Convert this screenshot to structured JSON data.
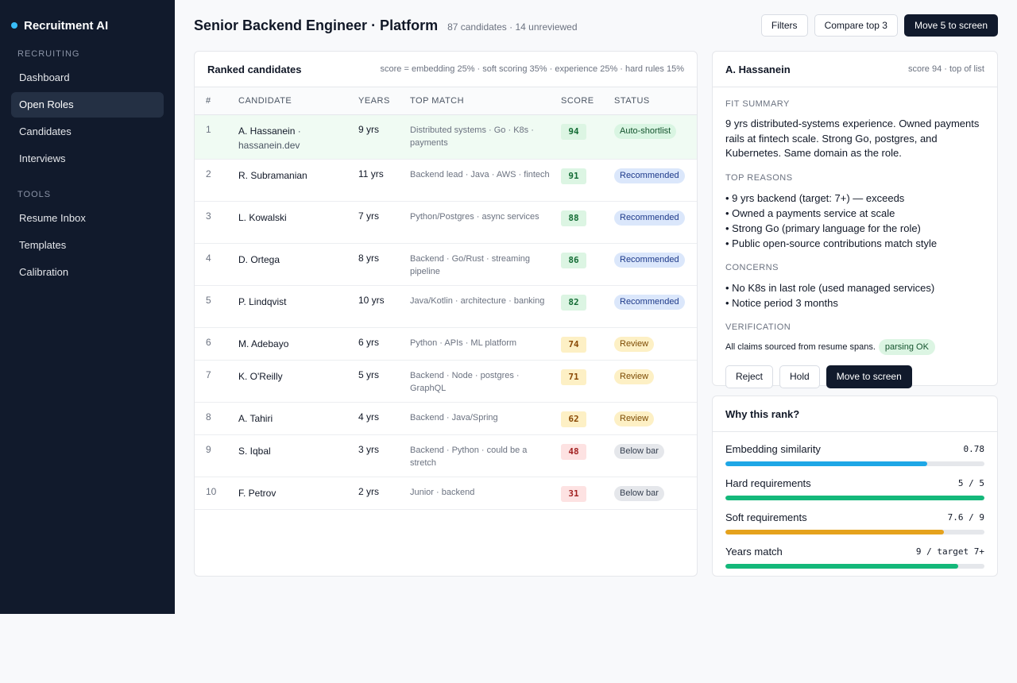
{
  "app": {
    "title": "Recruitment AI",
    "accent": "#38bdf8"
  },
  "sidebar": {
    "sections": [
      {
        "label": "RECRUITING",
        "items": [
          "Dashboard",
          "Open Roles",
          "Candidates",
          "Interviews"
        ]
      },
      {
        "label": "TOOLS",
        "items": [
          "Resume Inbox",
          "Templates",
          "Calibration"
        ]
      }
    ],
    "active": "Open Roles"
  },
  "header": {
    "title": "Senior Backend Engineer · Platform",
    "subtitle": "87 candidates · 14 unreviewed",
    "actions": {
      "filters": "Filters",
      "compare": "Compare top 3",
      "move": "Move 5 to screen"
    }
  },
  "ranked": {
    "title": "Ranked candidates",
    "formula": "score = embedding 25% · soft scoring 35% · experience 25% · hard rules 15%",
    "columns": [
      "#",
      "CANDIDATE",
      "YEARS",
      "TOP MATCH",
      "SCORE",
      "STATUS"
    ],
    "rows": [
      {
        "rank": "1",
        "name": "A. Hassanein",
        "sub": "hassanein.dev",
        "years": "9 yrs",
        "match": "Distributed systems · Go · K8s · payments",
        "score": "94",
        "status": "Auto-shortlist",
        "level": "green",
        "kind": "auto"
      },
      {
        "rank": "2",
        "name": "R. Subramanian",
        "sub": "",
        "years": "11 yrs",
        "match": "Backend lead · Java · AWS · fintech",
        "score": "91",
        "status": "Recommended",
        "level": "green",
        "kind": "rec"
      },
      {
        "rank": "3",
        "name": "L. Kowalski",
        "sub": "",
        "years": "7 yrs",
        "match": "Python/Postgres · async services",
        "score": "88",
        "status": "Recommended",
        "level": "green",
        "kind": "rec"
      },
      {
        "rank": "4",
        "name": "D. Ortega",
        "sub": "",
        "years": "8 yrs",
        "match": "Backend · Go/Rust · streaming pipeline",
        "score": "86",
        "status": "Recommended",
        "level": "green",
        "kind": "rec"
      },
      {
        "rank": "5",
        "name": "P. Lindqvist",
        "sub": "",
        "years": "10 yrs",
        "match": "Java/Kotlin · architecture · banking",
        "score": "82",
        "status": "Recommended",
        "level": "green",
        "kind": "rec"
      },
      {
        "rank": "6",
        "name": "M. Adebayo",
        "sub": "",
        "years": "6 yrs",
        "match": "Python · APIs · ML platform",
        "score": "74",
        "status": "Review",
        "level": "amber",
        "kind": "rev"
      },
      {
        "rank": "7",
        "name": "K. O'Reilly",
        "sub": "",
        "years": "5 yrs",
        "match": "Backend · Node · postgres · GraphQL",
        "score": "71",
        "status": "Review",
        "level": "amber",
        "kind": "rev"
      },
      {
        "rank": "8",
        "name": "A. Tahiri",
        "sub": "",
        "years": "4 yrs",
        "match": "Backend · Java/Spring",
        "score": "62",
        "status": "Review",
        "level": "amber",
        "kind": "rev"
      },
      {
        "rank": "9",
        "name": "S. Iqbal",
        "sub": "",
        "years": "3 yrs",
        "match": "Backend · Python · could be a stretch",
        "score": "48",
        "status": "Below bar",
        "level": "red",
        "kind": "below"
      },
      {
        "rank": "10",
        "name": "F. Petrov",
        "sub": "",
        "years": "2 yrs",
        "match": "Junior · backend",
        "score": "31",
        "status": "Below bar",
        "level": "red",
        "kind": "below"
      }
    ]
  },
  "detail": {
    "name": "A. Hassanein",
    "meta": "score 94 · top of list",
    "fit_label": "FIT SUMMARY",
    "fit_text": "9 yrs distributed-systems experience. Owned payments rails at fintech scale. Strong Go, postgres, and Kubernetes. Same domain as the role.",
    "reasons_label": "TOP REASONS",
    "reasons": [
      "• 9 yrs backend (target: 7+) — exceeds",
      "• Owned a payments service at scale",
      "• Strong Go (primary language for the role)",
      "• Public open-source contributions match style"
    ],
    "concerns_label": "CONCERNS",
    "concerns": [
      "• No K8s in last role (used managed services)",
      "• Notice period 3 months"
    ],
    "verification_label": "VERIFICATION",
    "verification_text": "All claims sourced from resume spans.",
    "verification_badge": "parsing OK",
    "actions": {
      "reject": "Reject",
      "hold": "Hold",
      "move": "Move to screen"
    }
  },
  "why": {
    "title": "Why this rank?",
    "metrics": [
      {
        "label": "Embedding similarity",
        "value": "0.78",
        "fraction": 0.78,
        "color": "#1ea7e6"
      },
      {
        "label": "Hard requirements",
        "value": "5 / 5",
        "fraction": 1.0,
        "color": "#14b87a"
      },
      {
        "label": "Soft requirements",
        "value": "7.6 / 9",
        "fraction": 0.844,
        "color": "#e5a21d"
      },
      {
        "label": "Years match",
        "value": "9 / target 7+",
        "fraction": 0.9,
        "color": "#14b87a"
      }
    ]
  }
}
